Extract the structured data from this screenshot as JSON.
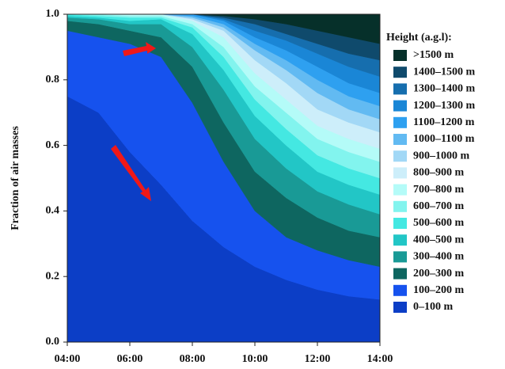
{
  "chart_data": {
    "type": "stacked-area",
    "ylabel": "Fraction of air masses",
    "legend_title": "Height (a.g.l):",
    "x": [
      4,
      5,
      6,
      7,
      8,
      9,
      10,
      11,
      12,
      13,
      14
    ],
    "xlim": [
      4,
      14
    ],
    "xticks": [
      {
        "value": 4,
        "label": "04:00"
      },
      {
        "value": 6,
        "label": "06:00"
      },
      {
        "value": 8,
        "label": "08:00"
      },
      {
        "value": 10,
        "label": "10:00"
      },
      {
        "value": 12,
        "label": "12:00"
      },
      {
        "value": 14,
        "label": "14:00"
      }
    ],
    "ylim": [
      0,
      1
    ],
    "yticks": [
      {
        "value": 0,
        "label": "0.0"
      },
      0.2,
      0.4,
      0.6,
      0.8,
      {
        "value": 1,
        "label": "1.0"
      }
    ],
    "series": [
      {
        "name": "0–100 m",
        "color": "#0c3ec6",
        "values": [
          0.75,
          0.7,
          0.58,
          0.48,
          0.37,
          0.29,
          0.23,
          0.19,
          0.16,
          0.14,
          0.13
        ]
      },
      {
        "name": "100–200 m",
        "color": "#1652ee",
        "values": [
          0.2,
          0.23,
          0.33,
          0.39,
          0.36,
          0.26,
          0.17,
          0.13,
          0.12,
          0.11,
          0.1
        ]
      },
      {
        "name": "200–300 m",
        "color": "#0e6660",
        "values": [
          0.03,
          0.04,
          0.04,
          0.06,
          0.11,
          0.12,
          0.12,
          0.12,
          0.1,
          0.09,
          0.09
        ]
      },
      {
        "name": "300–400 m",
        "color": "#199a96",
        "values": [
          0.01,
          0.015,
          0.02,
          0.04,
          0.06,
          0.1,
          0.1,
          0.09,
          0.08,
          0.08,
          0.07
        ]
      },
      {
        "name": "400–500 m",
        "color": "#22c6c6",
        "values": [
          0.005,
          0.005,
          0.01,
          0.015,
          0.04,
          0.06,
          0.07,
          0.07,
          0.06,
          0.06,
          0.06
        ]
      },
      {
        "name": "500–600 m",
        "color": "#44e8e2",
        "values": [
          0.005,
          0.005,
          0.01,
          0.005,
          0.02,
          0.04,
          0.05,
          0.05,
          0.05,
          0.05,
          0.05
        ]
      },
      {
        "name": "600–700 m",
        "color": "#82f4ee",
        "values": [
          0,
          0.005,
          0.005,
          0.005,
          0.01,
          0.03,
          0.04,
          0.05,
          0.05,
          0.05,
          0.05
        ]
      },
      {
        "name": "700–800 m",
        "color": "#b4fbf8",
        "values": [
          0,
          0,
          0.005,
          0.005,
          0.01,
          0.03,
          0.04,
          0.04,
          0.04,
          0.04,
          0.04
        ]
      },
      {
        "name": "800–900 m",
        "color": "#cdeefa",
        "values": [
          0,
          0,
          0,
          0,
          0.005,
          0.02,
          0.04,
          0.05,
          0.05,
          0.05,
          0.05
        ]
      },
      {
        "name": "900–1000 m",
        "color": "#a2d8f6",
        "values": [
          0,
          0,
          0,
          0,
          0.005,
          0.01,
          0.03,
          0.04,
          0.05,
          0.04,
          0.04
        ]
      },
      {
        "name": "1000–1100 m",
        "color": "#62baf2",
        "values": [
          0,
          0,
          0,
          0,
          0.005,
          0.01,
          0.02,
          0.03,
          0.04,
          0.04,
          0.04
        ]
      },
      {
        "name": "1100–1200 m",
        "color": "#2ea0f0",
        "values": [
          0,
          0,
          0,
          0,
          0.005,
          0.01,
          0.02,
          0.03,
          0.04,
          0.04,
          0.04
        ]
      },
      {
        "name": "1200–1300 m",
        "color": "#1a86d6",
        "values": [
          0,
          0,
          0,
          0,
          0,
          0.005,
          0.02,
          0.03,
          0.04,
          0.05,
          0.05
        ]
      },
      {
        "name": "1300–1400 m",
        "color": "#166eae",
        "values": [
          0,
          0,
          0,
          0,
          0,
          0.005,
          0.02,
          0.02,
          0.03,
          0.04,
          0.05
        ]
      },
      {
        "name": "1400–1500 m",
        "color": "#0f4a6c",
        "values": [
          0,
          0,
          0,
          0,
          0,
          0.005,
          0.015,
          0.03,
          0.04,
          0.05,
          0.05
        ]
      },
      {
        "name": ">1500 m",
        "color": "#06302a",
        "values": [
          0,
          0,
          0,
          0,
          0,
          0.005,
          0.015,
          0.03,
          0.05,
          0.07,
          0.09
        ]
      }
    ]
  }
}
